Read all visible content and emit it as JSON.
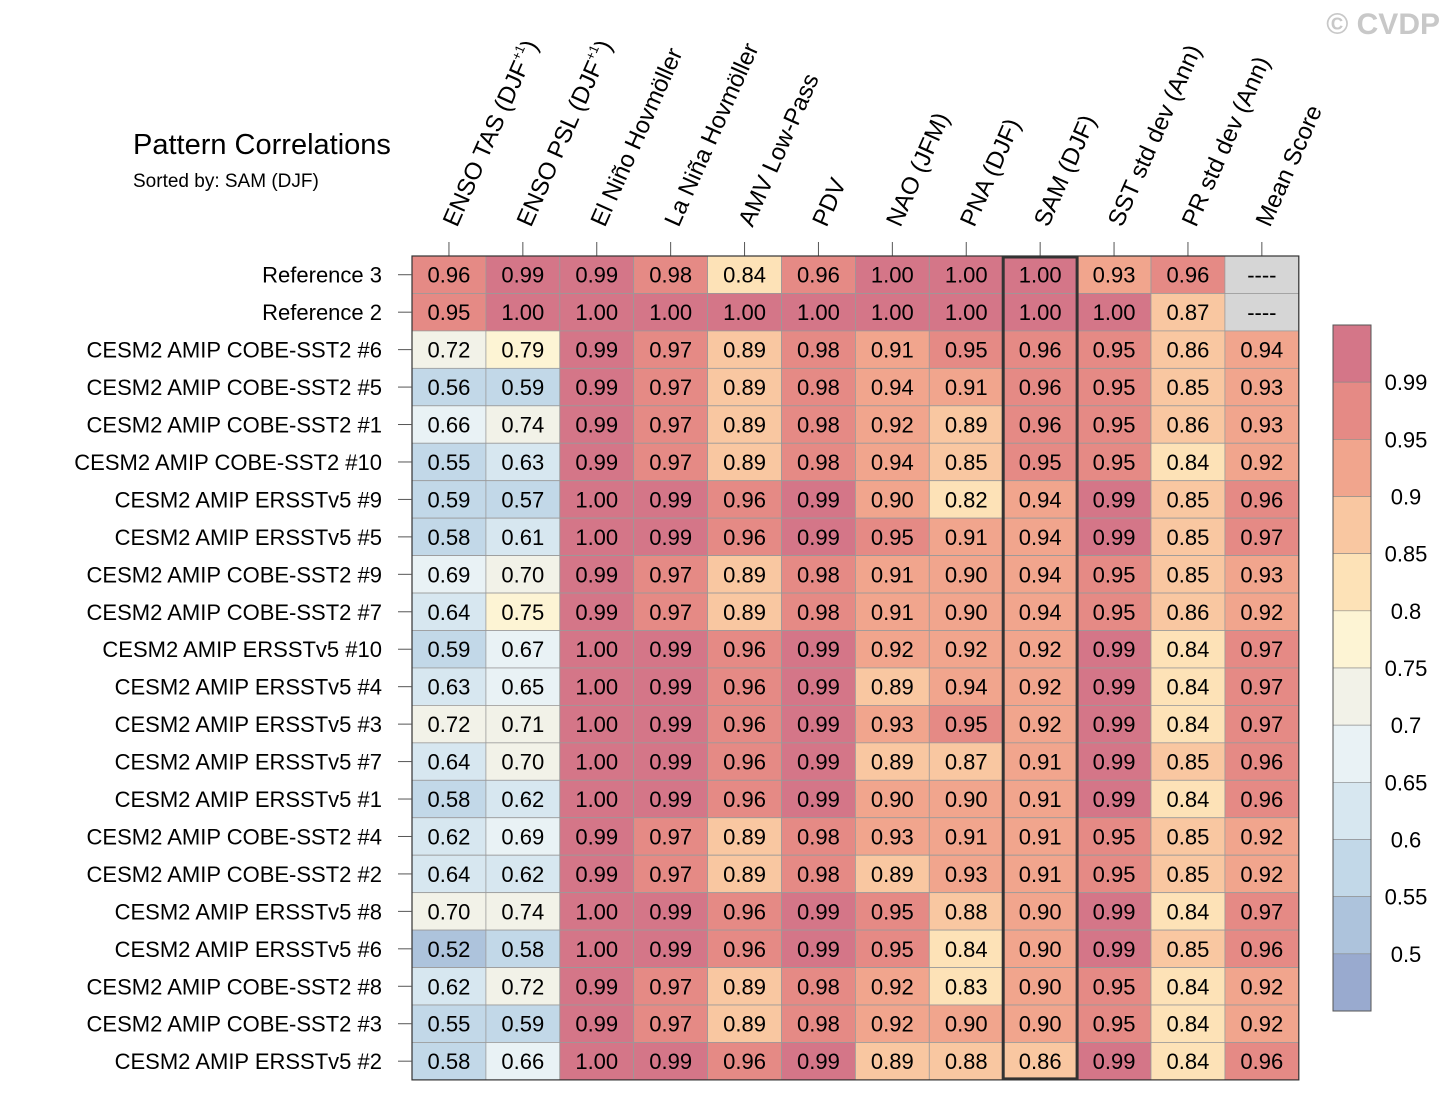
{
  "watermark": "© CVDP",
  "chart_data": {
    "type": "heatmap",
    "title": "Pattern Correlations",
    "subtitle": "Sorted by: SAM (DJF)",
    "highlight_column": 8,
    "columns": [
      {
        "label": "ENSO TAS (DJF",
        "sup": "+1",
        "tail": ")"
      },
      {
        "label": "ENSO PSL (DJF",
        "sup": "+1",
        "tail": ")"
      },
      {
        "label": "El Niño Hovmöller"
      },
      {
        "label": "La Niña Hovmöller"
      },
      {
        "label": "AMV Low-Pass"
      },
      {
        "label": "PDV"
      },
      {
        "label": "NAO (JFM)"
      },
      {
        "label": "PNA (DJF)"
      },
      {
        "label": "SAM (DJF)"
      },
      {
        "label": "SST std dev (Ann)"
      },
      {
        "label": "PR std dev (Ann)"
      },
      {
        "label": "Mean Score"
      }
    ],
    "rows": [
      {
        "name": "Reference 3",
        "values": [
          0.96,
          0.99,
          0.99,
          0.98,
          0.84,
          0.96,
          1.0,
          1.0,
          1.0,
          0.93,
          0.96,
          null
        ]
      },
      {
        "name": "Reference 2",
        "values": [
          0.95,
          1.0,
          1.0,
          1.0,
          1.0,
          1.0,
          1.0,
          1.0,
          1.0,
          1.0,
          0.87,
          null
        ]
      },
      {
        "name": "CESM2 AMIP COBE-SST2 #6",
        "values": [
          0.72,
          0.79,
          0.99,
          0.97,
          0.89,
          0.98,
          0.91,
          0.95,
          0.96,
          0.95,
          0.86,
          0.94
        ]
      },
      {
        "name": "CESM2 AMIP COBE-SST2 #5",
        "values": [
          0.56,
          0.59,
          0.99,
          0.97,
          0.89,
          0.98,
          0.94,
          0.91,
          0.96,
          0.95,
          0.85,
          0.93
        ]
      },
      {
        "name": "CESM2 AMIP COBE-SST2 #1",
        "values": [
          0.66,
          0.74,
          0.99,
          0.97,
          0.89,
          0.98,
          0.92,
          0.89,
          0.96,
          0.95,
          0.86,
          0.93
        ]
      },
      {
        "name": "CESM2 AMIP COBE-SST2 #10",
        "values": [
          0.55,
          0.63,
          0.99,
          0.97,
          0.89,
          0.98,
          0.94,
          0.85,
          0.95,
          0.95,
          0.84,
          0.92
        ]
      },
      {
        "name": "CESM2 AMIP ERSSTv5 #9",
        "values": [
          0.59,
          0.57,
          1.0,
          0.99,
          0.96,
          0.99,
          0.9,
          0.82,
          0.94,
          0.99,
          0.85,
          0.96
        ]
      },
      {
        "name": "CESM2 AMIP ERSSTv5 #5",
        "values": [
          0.58,
          0.61,
          1.0,
          0.99,
          0.96,
          0.99,
          0.95,
          0.91,
          0.94,
          0.99,
          0.85,
          0.97
        ]
      },
      {
        "name": "CESM2 AMIP COBE-SST2 #9",
        "values": [
          0.69,
          0.7,
          0.99,
          0.97,
          0.89,
          0.98,
          0.91,
          0.9,
          0.94,
          0.95,
          0.85,
          0.93
        ]
      },
      {
        "name": "CESM2 AMIP COBE-SST2 #7",
        "values": [
          0.64,
          0.75,
          0.99,
          0.97,
          0.89,
          0.98,
          0.91,
          0.9,
          0.94,
          0.95,
          0.86,
          0.92
        ]
      },
      {
        "name": "CESM2 AMIP ERSSTv5 #10",
        "values": [
          0.59,
          0.67,
          1.0,
          0.99,
          0.96,
          0.99,
          0.92,
          0.92,
          0.92,
          0.99,
          0.84,
          0.97
        ]
      },
      {
        "name": "CESM2 AMIP ERSSTv5 #4",
        "values": [
          0.63,
          0.65,
          1.0,
          0.99,
          0.96,
          0.99,
          0.89,
          0.94,
          0.92,
          0.99,
          0.84,
          0.97
        ]
      },
      {
        "name": "CESM2 AMIP ERSSTv5 #3",
        "values": [
          0.72,
          0.71,
          1.0,
          0.99,
          0.96,
          0.99,
          0.93,
          0.95,
          0.92,
          0.99,
          0.84,
          0.97
        ]
      },
      {
        "name": "CESM2 AMIP ERSSTv5 #7",
        "values": [
          0.64,
          0.7,
          1.0,
          0.99,
          0.96,
          0.99,
          0.89,
          0.87,
          0.91,
          0.99,
          0.85,
          0.96
        ]
      },
      {
        "name": "CESM2 AMIP ERSSTv5 #1",
        "values": [
          0.58,
          0.62,
          1.0,
          0.99,
          0.96,
          0.99,
          0.9,
          0.9,
          0.91,
          0.99,
          0.84,
          0.96
        ]
      },
      {
        "name": "CESM2 AMIP COBE-SST2 #4",
        "values": [
          0.62,
          0.69,
          0.99,
          0.97,
          0.89,
          0.98,
          0.93,
          0.91,
          0.91,
          0.95,
          0.85,
          0.92
        ]
      },
      {
        "name": "CESM2 AMIP COBE-SST2 #2",
        "values": [
          0.64,
          0.62,
          0.99,
          0.97,
          0.89,
          0.98,
          0.89,
          0.93,
          0.91,
          0.95,
          0.85,
          0.92
        ]
      },
      {
        "name": "CESM2 AMIP ERSSTv5 #8",
        "values": [
          0.7,
          0.74,
          1.0,
          0.99,
          0.96,
          0.99,
          0.95,
          0.88,
          0.9,
          0.99,
          0.84,
          0.97
        ]
      },
      {
        "name": "CESM2 AMIP ERSSTv5 #6",
        "values": [
          0.52,
          0.58,
          1.0,
          0.99,
          0.96,
          0.99,
          0.95,
          0.84,
          0.9,
          0.99,
          0.85,
          0.96
        ]
      },
      {
        "name": "CESM2 AMIP COBE-SST2 #8",
        "values": [
          0.62,
          0.72,
          0.99,
          0.97,
          0.89,
          0.98,
          0.92,
          0.83,
          0.9,
          0.95,
          0.84,
          0.92
        ]
      },
      {
        "name": "CESM2 AMIP COBE-SST2 #3",
        "values": [
          0.55,
          0.59,
          0.99,
          0.97,
          0.89,
          0.98,
          0.92,
          0.9,
          0.9,
          0.95,
          0.84,
          0.92
        ]
      },
      {
        "name": "CESM2 AMIP ERSSTv5 #2",
        "values": [
          0.58,
          0.66,
          1.0,
          0.99,
          0.96,
          0.99,
          0.89,
          0.88,
          0.86,
          0.99,
          0.84,
          0.96
        ]
      }
    ],
    "missing_text": "----",
    "missing_color": "#d6d6d6",
    "colorbar": {
      "levels": [
        0.5,
        0.55,
        0.6,
        0.65,
        0.7,
        0.75,
        0.8,
        0.85,
        0.9,
        0.95,
        0.99
      ],
      "level_labels": [
        "0.5",
        "0.55",
        "0.6",
        "0.65",
        "0.7",
        "0.75",
        "0.8",
        "0.85",
        "0.9",
        "0.95",
        "0.99"
      ],
      "colors": [
        "#99aacf",
        "#adc3dc",
        "#c2d8e8",
        "#d7e7f0",
        "#e9f2f5",
        "#f2f2e8",
        "#fdf4d4",
        "#fde2b7",
        "#f9c7a1",
        "#f1a58d",
        "#e58a85",
        "#d47688"
      ]
    }
  }
}
